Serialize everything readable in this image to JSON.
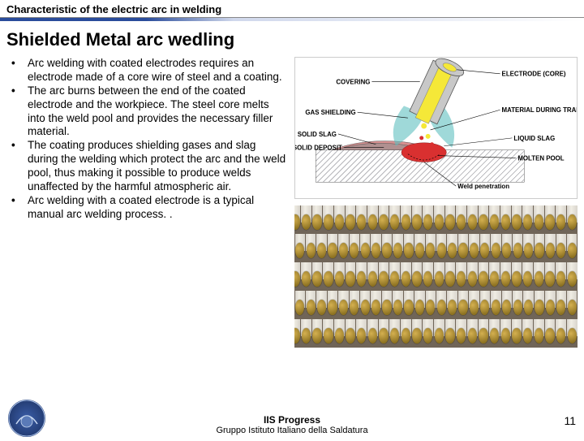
{
  "header": "Characteristic of the electric arc in welding",
  "title": "Shielded Metal arc wedling",
  "bullets": [
    "Arc welding with coated electrodes requires an electrode made of a core wire of steel and a coating.",
    "The arc burns between the end of the coated electrode and the workpiece. The steel core melts into the weld pool and provides the necessary filler material.",
    "The coating produces shielding gases and slag during the welding which protect the arc and the weld pool, thus making it possible to produce welds unaffected by the harmful atmospheric air.",
    "Arc welding with a coated electrode is a typical manual arc welding process. ."
  ],
  "diagram": {
    "labels": {
      "covering": "COVERING",
      "gas_shielding": "GAS SHIELDING",
      "solid_slag": "SOLID SLAG",
      "electrode_core": "ELECTRODE (CORE)",
      "material_transfer": "MATERIAL DURING TRANSFER",
      "liquid_slag": "LIQUID SLAG",
      "molten_pool": "MOLTEN POOL",
      "weld_penetration": "Weld penetration",
      "solid_deposit": "SOLID DEPOSIT"
    },
    "colors": {
      "covering": "#c8c8c8",
      "core": "#f5e838",
      "gas": "#5fbfc0",
      "molten": "#d93030",
      "slag": "#d89090",
      "base": "#a8a8b0"
    }
  },
  "photo": {
    "rod_body": "#d8d4cc",
    "rod_tip_outer": "#8b7020",
    "rod_tip_inner": "#d4b050",
    "background": "#706558",
    "rows": 5,
    "rods_per_row": 26
  },
  "footer": {
    "line1": "IIS Progress",
    "line2": "Gruppo Istituto Italiano della Saldatura"
  },
  "page_number": "11",
  "logo_color": "#2a4c9b"
}
